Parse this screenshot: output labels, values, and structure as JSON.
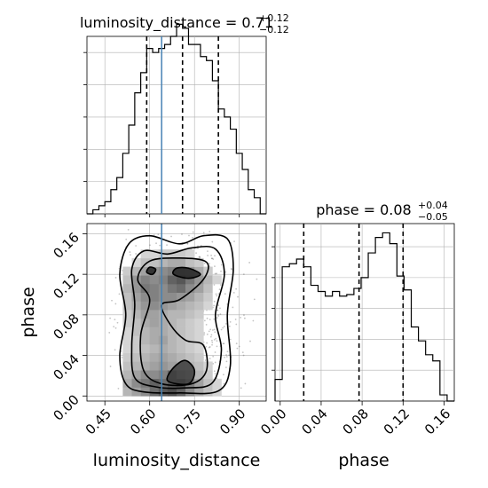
{
  "figure": {
    "type": "corner-plot"
  },
  "chart_data": [
    {
      "type": "bar",
      "panel": "luminosity_distance-marginal",
      "title": {
        "main": "luminosity_distance = 0.71",
        "sup": "+0.12",
        "sub": "−0.12"
      },
      "xlim": [
        0.39,
        0.99
      ],
      "ylim": [
        0,
        44
      ],
      "bin_edges": [
        0.39,
        0.41,
        0.43,
        0.45,
        0.47,
        0.49,
        0.51,
        0.53,
        0.55,
        0.57,
        0.59,
        0.61,
        0.63,
        0.65,
        0.67,
        0.69,
        0.71,
        0.73,
        0.75,
        0.77,
        0.79,
        0.81,
        0.83,
        0.85,
        0.87,
        0.89,
        0.91,
        0.93,
        0.95,
        0.97,
        0.99
      ],
      "counts": [
        0,
        1,
        2,
        3,
        6,
        9,
        15,
        22,
        30,
        35,
        41,
        40,
        41,
        42,
        44,
        47,
        46,
        42,
        42,
        39,
        38,
        33,
        26,
        24,
        21,
        15,
        11,
        6,
        4,
        0
      ],
      "quantile_lines": [
        0.59,
        0.71,
        0.83
      ],
      "truth": 0.64,
      "grid": true
    },
    {
      "type": "bar",
      "panel": "phase-marginal",
      "title": {
        "main": "phase = 0.08",
        "sup": "+0.04",
        "sub": "−0.05"
      },
      "xlim": [
        -0.005,
        0.17
      ],
      "ylim": [
        0,
        1.15
      ],
      "xlabel": "phase",
      "xticks": [
        "0.00",
        "0.04",
        "0.08",
        "0.12",
        "0.16"
      ],
      "bin_edges": [
        -0.005,
        0.002,
        0.009,
        0.016,
        0.023,
        0.03,
        0.037,
        0.044,
        0.051,
        0.058,
        0.065,
        0.072,
        0.079,
        0.086,
        0.093,
        0.1,
        0.107,
        0.114,
        0.121,
        0.128,
        0.135,
        0.142,
        0.149,
        0.156,
        0.163,
        0.17
      ],
      "counts": [
        0.14,
        0.87,
        0.89,
        0.92,
        0.87,
        0.75,
        0.71,
        0.68,
        0.71,
        0.68,
        0.69,
        0.73,
        0.8,
        0.96,
        1.06,
        1.09,
        1.02,
        0.81,
        0.72,
        0.48,
        0.39,
        0.3,
        0.26,
        0.04,
        0.0
      ],
      "quantile_lines": [
        0.023,
        0.077,
        0.12
      ],
      "grid": true
    },
    {
      "type": "heatmap",
      "panel": "luminosity_distance-vs-phase",
      "xlabel": "luminosity_distance",
      "ylabel": "phase",
      "xticks": [
        "0.45",
        "0.60",
        "0.75",
        "0.90"
      ],
      "yticks": [
        "0.00",
        "0.04",
        "0.08",
        "0.12",
        "0.16"
      ],
      "xlim": [
        0.39,
        0.99
      ],
      "ylim": [
        -0.005,
        0.17
      ],
      "truth_x": 0.64,
      "x_edges": [
        0.51,
        0.54,
        0.57,
        0.6,
        0.63,
        0.66,
        0.69,
        0.72,
        0.75,
        0.78,
        0.81,
        0.84
      ],
      "y_edges": [
        0.0,
        0.0085,
        0.017,
        0.0255,
        0.034,
        0.0425,
        0.051,
        0.0595,
        0.068,
        0.0765,
        0.085,
        0.0935,
        0.102,
        0.1105,
        0.119,
        0.1275,
        0.136,
        0.1445
      ],
      "density": [
        [
          0.35,
          0.45,
          0.55,
          0.7,
          0.8,
          0.85,
          0.75,
          0.55,
          0.4,
          0.3,
          0.2
        ],
        [
          0.4,
          0.55,
          0.65,
          0.75,
          0.7,
          0.8,
          0.85,
          0.6,
          0.45,
          0.3,
          0.2
        ],
        [
          0.35,
          0.45,
          0.55,
          0.55,
          0.6,
          0.75,
          0.55,
          0.45,
          0.35,
          0.25,
          0.15
        ],
        [
          0.3,
          0.35,
          0.4,
          0.45,
          0.5,
          0.45,
          0.4,
          0.35,
          0.3,
          0.2,
          0.12
        ],
        [
          0.25,
          0.3,
          0.35,
          0.4,
          0.45,
          0.4,
          0.35,
          0.3,
          0.25,
          0.18,
          0.1
        ],
        [
          0.2,
          0.25,
          0.3,
          0.35,
          0.4,
          0.35,
          0.3,
          0.25,
          0.2,
          0.15,
          0.1
        ],
        [
          0.2,
          0.25,
          0.35,
          0.4,
          0.45,
          0.35,
          0.3,
          0.25,
          0.2,
          0.15,
          0.1
        ],
        [
          0.2,
          0.3,
          0.35,
          0.4,
          0.4,
          0.35,
          0.3,
          0.25,
          0.2,
          0.15,
          0.1
        ],
        [
          0.25,
          0.3,
          0.4,
          0.45,
          0.4,
          0.35,
          0.3,
          0.25,
          0.2,
          0.15,
          0.1
        ],
        [
          0.25,
          0.35,
          0.45,
          0.45,
          0.4,
          0.35,
          0.35,
          0.3,
          0.25,
          0.18,
          0.1
        ],
        [
          0.3,
          0.4,
          0.5,
          0.55,
          0.5,
          0.45,
          0.4,
          0.35,
          0.3,
          0.2,
          0.12
        ],
        [
          0.3,
          0.45,
          0.55,
          0.6,
          0.55,
          0.55,
          0.5,
          0.45,
          0.35,
          0.25,
          0.15
        ],
        [
          0.35,
          0.5,
          0.65,
          0.6,
          0.55,
          0.65,
          0.7,
          0.55,
          0.45,
          0.3,
          0.15
        ],
        [
          0.3,
          0.5,
          0.6,
          0.55,
          0.6,
          0.75,
          0.8,
          0.65,
          0.5,
          0.35,
          0.2
        ],
        [
          0.25,
          0.35,
          0.45,
          0.5,
          0.55,
          0.6,
          0.55,
          0.5,
          0.4,
          0.25,
          0.15
        ],
        [
          0.15,
          0.2,
          0.3,
          0.3,
          0.35,
          0.4,
          0.4,
          0.3,
          0.25,
          0.15,
          0.1
        ],
        [
          0.1,
          0.15,
          0.2,
          0.2,
          0.25,
          0.25,
          0.25,
          0.2,
          0.15,
          0.1,
          0.05
        ]
      ],
      "contour_levels": 4,
      "grid": true
    }
  ],
  "colors": {
    "truth_line": "#4682b4",
    "hist_line": "#000000",
    "grid": "#b0b0b0",
    "scatter": "#555555"
  }
}
